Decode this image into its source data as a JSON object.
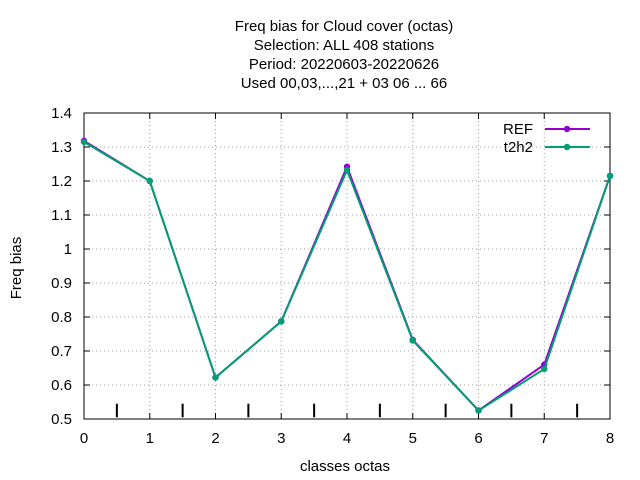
{
  "chart_data": {
    "type": "line",
    "title_lines": [
      "Freq bias  for Cloud cover (octas)",
      "Selection: ALL    408 stations",
      "Period: 20220603-20220626",
      "Used  00,03,...,21  + 03 06 ... 66"
    ],
    "xlabel": "classes octas",
    "ylabel": "Freq bias",
    "xlim": [
      0,
      8
    ],
    "ylim": [
      0.5,
      1.4
    ],
    "x_ticks": [
      "0",
      "1",
      "2",
      "3",
      "4",
      "5",
      "6",
      "7",
      "8"
    ],
    "y_ticks": [
      "0.5",
      "0.6",
      "0.7",
      "0.8",
      "0.9",
      "1",
      "1.1",
      "1.2",
      "1.3",
      "1.4"
    ],
    "grid": true,
    "legend_position": "top-right",
    "x": [
      0,
      1,
      2,
      3,
      4,
      5,
      6,
      7,
      8
    ],
    "series": [
      {
        "name": "REF",
        "color": "#9400d3",
        "values": [
          1.318,
          1.2,
          0.622,
          0.787,
          1.242,
          0.733,
          0.525,
          0.66,
          1.215
        ]
      },
      {
        "name": "t2h2",
        "color": "#009e73",
        "values": [
          1.315,
          1.2,
          0.622,
          0.787,
          1.232,
          0.731,
          0.525,
          0.647,
          1.215
        ]
      }
    ],
    "bar_ticks_x": [
      0.5,
      1.5,
      2.5,
      3.5,
      4.5,
      5.5,
      6.5,
      7.5
    ]
  }
}
